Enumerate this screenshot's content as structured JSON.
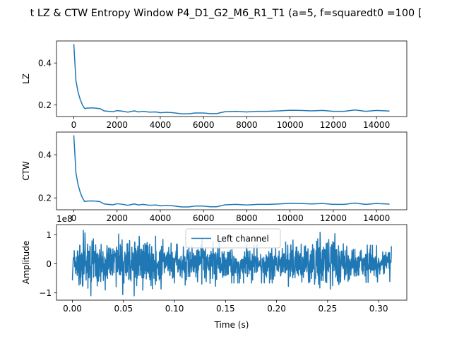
{
  "figure": {
    "title": "t LZ & CTW Entropy Window P4_D1_G2_M6_R1_T1 (a=5, f=squaredt0 =100 [",
    "line_color": "#1f77b4",
    "axes_color": "#000000",
    "legend_border_color": "#cccccc"
  },
  "chart_data": [
    {
      "type": "line",
      "ylabel": "LZ",
      "xlabel": "",
      "xlim": [
        -800,
        15400
      ],
      "ylim": [
        0.145,
        0.505
      ],
      "xticks": [
        0,
        2000,
        4000,
        6000,
        8000,
        10000,
        12000,
        14000
      ],
      "xtick_labels": [
        "0",
        "2000",
        "4000",
        "6000",
        "8000",
        "10000",
        "12000",
        "14000"
      ],
      "yticks": [
        0.2,
        0.4
      ],
      "ytick_labels": [
        "0.2",
        "0.4"
      ],
      "grid": false,
      "x": [
        0,
        100,
        200,
        300,
        400,
        500,
        600,
        800,
        1000,
        1200,
        1400,
        1600,
        1800,
        2000,
        2200,
        2500,
        2800,
        3000,
        3200,
        3500,
        3800,
        4000,
        4300,
        4600,
        5000,
        5300,
        5600,
        6000,
        6300,
        6600,
        7000,
        7500,
        8000,
        8500,
        9000,
        9500,
        10000,
        10500,
        11000,
        11500,
        12000,
        12500,
        13000,
        13500,
        14000,
        14600
      ],
      "y": [
        0.49,
        0.315,
        0.26,
        0.225,
        0.2,
        0.183,
        0.185,
        0.186,
        0.185,
        0.183,
        0.172,
        0.17,
        0.168,
        0.173,
        0.171,
        0.166,
        0.172,
        0.167,
        0.17,
        0.166,
        0.167,
        0.163,
        0.165,
        0.163,
        0.158,
        0.158,
        0.162,
        0.162,
        0.159,
        0.159,
        0.168,
        0.17,
        0.167,
        0.17,
        0.17,
        0.172,
        0.175,
        0.174,
        0.172,
        0.174,
        0.17,
        0.17,
        0.176,
        0.17,
        0.174,
        0.171
      ]
    },
    {
      "type": "line",
      "ylabel": "CTW",
      "xlabel": "",
      "xlim": [
        -800,
        15400
      ],
      "ylim": [
        0.145,
        0.505
      ],
      "xticks": [
        0,
        2000,
        4000,
        6000,
        8000,
        10000,
        12000,
        14000
      ],
      "xtick_labels": [
        "0",
        "2000",
        "4000",
        "6000",
        "8000",
        "10000",
        "12000",
        "14000"
      ],
      "yticks": [
        0.2,
        0.4
      ],
      "ytick_labels": [
        "0.2",
        "0.4"
      ],
      "grid": false,
      "x": [
        0,
        100,
        200,
        300,
        400,
        500,
        600,
        800,
        1000,
        1200,
        1400,
        1600,
        1800,
        2000,
        2200,
        2500,
        2800,
        3000,
        3200,
        3500,
        3800,
        4000,
        4300,
        4600,
        5000,
        5300,
        5600,
        6000,
        6300,
        6600,
        7000,
        7500,
        8000,
        8500,
        9000,
        9500,
        10000,
        10500,
        11000,
        11500,
        12000,
        12500,
        13000,
        13500,
        14000,
        14600
      ],
      "y": [
        0.49,
        0.315,
        0.26,
        0.225,
        0.2,
        0.183,
        0.185,
        0.186,
        0.185,
        0.183,
        0.172,
        0.17,
        0.168,
        0.173,
        0.171,
        0.166,
        0.172,
        0.167,
        0.17,
        0.166,
        0.167,
        0.163,
        0.165,
        0.163,
        0.158,
        0.158,
        0.162,
        0.162,
        0.159,
        0.159,
        0.168,
        0.17,
        0.167,
        0.17,
        0.17,
        0.172,
        0.175,
        0.174,
        0.172,
        0.174,
        0.17,
        0.17,
        0.176,
        0.17,
        0.174,
        0.171
      ]
    },
    {
      "type": "line",
      "ylabel": "Amplitude",
      "xlabel": "Time (s)",
      "offset_text": "1e8",
      "xlim": [
        -0.0156,
        0.3276
      ],
      "ylim": [
        -1.25,
        1.35
      ],
      "xticks": [
        0.0,
        0.05,
        0.1,
        0.15,
        0.2,
        0.25,
        0.3
      ],
      "xtick_labels": [
        "0.00",
        "0.05",
        "0.10",
        "0.15",
        "0.20",
        "0.25",
        "0.30"
      ],
      "yticks": [
        -1,
        0,
        1
      ],
      "ytick_labels": [
        "−1",
        "0",
        "1"
      ],
      "grid": false,
      "legend": {
        "position": "top-center",
        "entries": [
          "Left channel"
        ]
      },
      "series": [
        {
          "name": "Left channel",
          "x_range": [
            0.0,
            0.3125
          ],
          "amplitude_envelope": [
            [
              0.0,
              0.6
            ],
            [
              0.012,
              1.1
            ],
            [
              0.03,
              0.8
            ],
            [
              0.065,
              1.1
            ],
            [
              0.1,
              0.6
            ],
            [
              0.14,
              0.85
            ],
            [
              0.15,
              0.6
            ],
            [
              0.2,
              0.6
            ],
            [
              0.25,
              1.05
            ],
            [
              0.28,
              0.6
            ],
            [
              0.3125,
              0.55
            ]
          ]
        }
      ]
    }
  ]
}
